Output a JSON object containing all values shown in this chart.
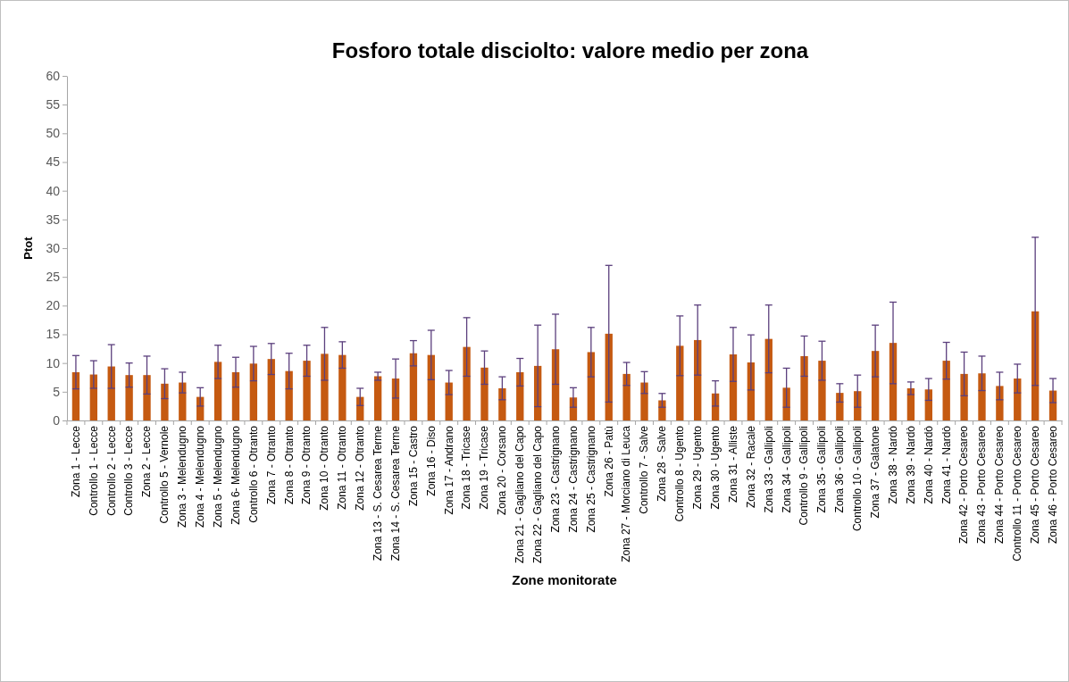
{
  "chart_data": {
    "type": "bar",
    "title": "Fosforo totale disciolto: valore medio per zona",
    "xlabel": "Zone monitorate",
    "ylabel": "Ptot",
    "categories": [
      "Zona 1 - Lecce",
      "Controllo 1 - Lecce",
      "Controllo 2 - Lecce",
      "Controllo 3 - Lecce",
      "Zona 2 - Lecce",
      "Controllo 5 - Vernole",
      "Zona 3 - Melendugno",
      "Zona 4 - Melendugno",
      "Zona 5 - Melendugno",
      "Zona 6- Melendugno",
      "Controllo 6 - Otranto",
      "Zona 7 - Otranto",
      "Zona 8 - Otranto",
      "Zona 9 - Otranto",
      "Zona 10 - Otranto",
      "Zona 11 - Otranto",
      "Zona 12 - Otranto",
      "Zona 13 - S. Cesarea Terme",
      "Zona 14 - S. Cesarea Terme",
      "Zona 15 - Castro",
      "Zona 16 - Diso",
      "Zona 17 - Andrano",
      "Zona 18 - Tricase",
      "Zona 19 - Tricase",
      "Zona 20 - Corsano",
      "Zona 21 - Gagliano del Capo",
      "Zona 22 - Gagliano del Capo",
      "Zona 23 - Castrignano",
      "Zona 24 - Castrignano",
      "Zona 25 - Castrignano",
      "Zona 26 - Patù",
      "Zona 27 - Morciano di Leuca",
      "Controllo 7 - Salve",
      "Zona 28 - Salve",
      "Controllo 8 - Ugento",
      "Zona 29 - Ugento",
      "Zona 30 - Ugento",
      "Zona 31 - Alliste",
      "Zona 32 - Racale",
      "Zona 33 - Gallipoli",
      "Zona 34 - Gallipoli",
      "Controllo 9 - Gallipoli",
      "Zona 35 - Gallipoli",
      "Zona 36 - Gallipoli",
      "Controllo 10 - Gallipoli",
      "Zona 37 - Galatone",
      "Zona 38 - Nardò",
      "Zona 39 - Nardò",
      "Zona 40 - Nardò",
      "Zona 41 - Nardò",
      "Zona 42 - Porto Cesareo",
      "Zona 43 - Porto Cesareo",
      "Zona 44 - Porto Cesareo",
      "Controllo 11 - Porto Cesareo",
      "Zona 45 - Porto Cesareo",
      "Zona 46 - Porto Cesareo"
    ],
    "series": [
      {
        "color": "#c55a11",
        "values": [
          8.4,
          8.0,
          9.4,
          7.9,
          7.9,
          6.4,
          6.6,
          4.1,
          10.2,
          8.4,
          9.9,
          10.7,
          8.6,
          10.4,
          11.6,
          11.4,
          4.1,
          7.7,
          7.3,
          11.7,
          11.4,
          6.6,
          12.8,
          9.2,
          5.6,
          8.4,
          9.5,
          12.4,
          4.0,
          11.9,
          15.1,
          8.1,
          6.6,
          3.5,
          13.0,
          14.0,
          4.7,
          11.5,
          10.1,
          14.2,
          5.7,
          11.2,
          10.4,
          4.8,
          5.1,
          12.1,
          13.5,
          5.6,
          5.4,
          10.4,
          8.1,
          8.2,
          6.0,
          7.3,
          19.0,
          5.2
        ],
        "errors": [
          2.9,
          2.4,
          3.8,
          2.1,
          3.3,
          2.6,
          1.8,
          1.6,
          2.9,
          2.6,
          3.0,
          2.7,
          3.1,
          2.7,
          4.6,
          2.3,
          1.5,
          0.7,
          3.4,
          2.2,
          4.3,
          2.1,
          5.1,
          2.9,
          2.0,
          2.4,
          7.1,
          6.1,
          1.7,
          4.3,
          11.9,
          2.0,
          1.9,
          1.2,
          5.2,
          6.1,
          2.2,
          4.7,
          4.8,
          5.9,
          3.4,
          3.5,
          3.4,
          1.6,
          2.8,
          4.5,
          7.1,
          1.1,
          1.9,
          3.2,
          3.8,
          3.0,
          2.4,
          2.5,
          12.9,
          2.1
        ]
      }
    ],
    "ylim": [
      0,
      60
    ],
    "yticks": [
      0,
      5,
      10,
      15,
      20,
      25,
      30,
      35,
      40,
      45,
      50,
      55,
      60
    ],
    "grid": false
  }
}
